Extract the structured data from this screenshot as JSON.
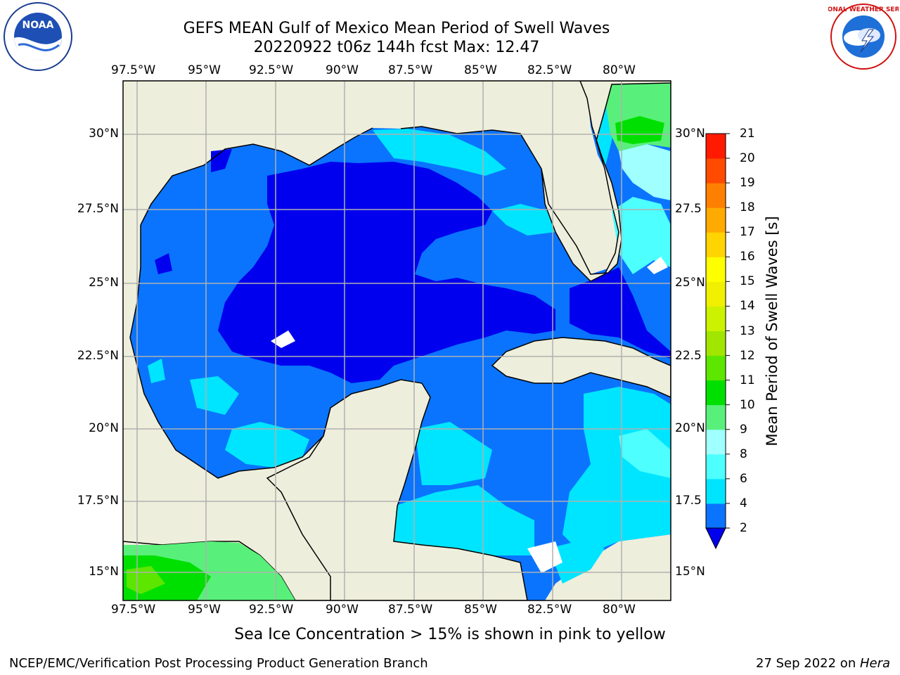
{
  "header": {
    "title_line1": "GEFS MEAN Gulf of Mexico Mean Period of Swell Waves",
    "title_line2": "20220922 t06z 144h fcst   Max: 12.47"
  },
  "logos": {
    "noaa_text": "NOAA",
    "noaa_ring_top": "NATIONAL OCEANIC AND ATMOSPHERIC ADMINISTRATION",
    "noaa_ring_bottom": "U.S. DEPARTMENT OF COMMERCE",
    "nws_text": "NATIONAL WEATHER SERVICE"
  },
  "axes": {
    "lon_labels": [
      "97.5°W",
      "95°W",
      "92.5°W",
      "90°W",
      "87.5°W",
      "85°W",
      "82.5°W",
      "80°W"
    ],
    "lat_labels_left": [
      "30°N",
      "27.5°N",
      "25°N",
      "22.5°N",
      "20°N",
      "17.5°N",
      "15°N"
    ],
    "lat_labels_right": [
      "30°N",
      "27.5",
      "25°N",
      "22.5",
      "20°N",
      "17.5",
      "15°N"
    ]
  },
  "colorbar": {
    "label": "Mean Period of Swell Waves [s]",
    "ticks": [
      "2",
      "4",
      "6",
      "8",
      "9",
      "10",
      "11",
      "12",
      "13",
      "14",
      "15",
      "16",
      "17",
      "18",
      "19",
      "20",
      "21"
    ],
    "colors": [
      "#0000ee",
      "#0a74ff",
      "#00e5ff",
      "#4dffff",
      "#a0ffff",
      "#58f07a",
      "#00e000",
      "#5ce600",
      "#a0e600",
      "#cdf200",
      "#f0f000",
      "#ffff00",
      "#ffd400",
      "#ffaa00",
      "#ff8000",
      "#ff4a00",
      "#ff1a00",
      "#ff0000"
    ]
  },
  "note": "Sea Ice Concentration > 15% is shown in pink to yellow",
  "footer": {
    "left": "NCEP/EMC/Verification Post Processing Product Generation Branch",
    "right_date": "27 Sep 2022 on ",
    "right_host": "Hera"
  },
  "map_colors": {
    "land": "#eeeedc",
    "deep_blue": "#0000ee",
    "mid_blue": "#0a74ff",
    "cyan": "#00e5ff",
    "light_cyan": "#4dffff",
    "pale_cyan": "#a0ffff",
    "green": "#58f07a",
    "bright_green": "#00e000",
    "grid": "#b0b0b0"
  }
}
